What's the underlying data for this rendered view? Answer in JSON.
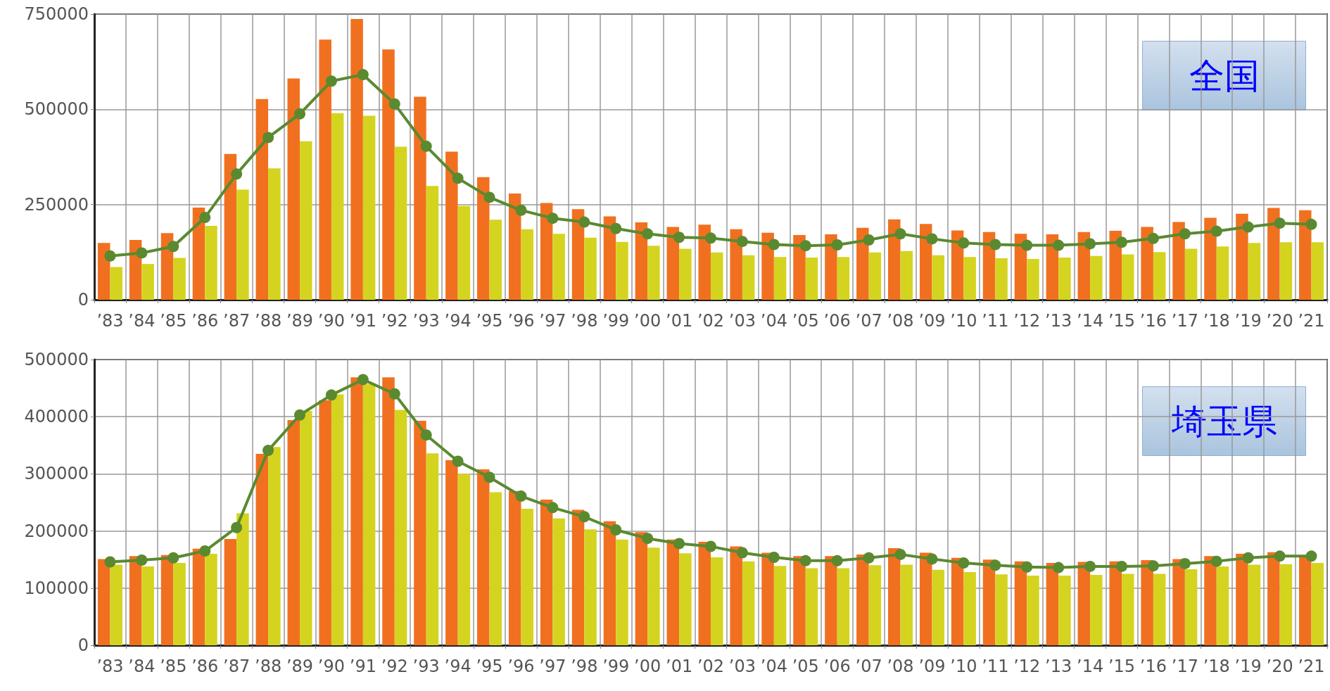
{
  "chart_data": [
    {
      "type": "bar",
      "categories": [
        "’83",
        "’84",
        "’85",
        "’86",
        "’87",
        "’88",
        "’89",
        "’90",
        "’91",
        "’92",
        "’93",
        "’94",
        "’95",
        "’96",
        "’97",
        "’98",
        "’99",
        "’00",
        "’01",
        "’02",
        "’03",
        "’04",
        "’05",
        "’06",
        "’07",
        "’08",
        "’09",
        "’10",
        "’11",
        "’12",
        "’13",
        "’14",
        "’15",
        "’16",
        "’17",
        "’18",
        "’19",
        "’20",
        "’21"
      ],
      "series": [
        {
          "color": "#f07020",
          "values": [
            149000,
            157000,
            175000,
            242000,
            383000,
            527000,
            581000,
            683000,
            737000,
            657000,
            533000,
            389000,
            322000,
            279000,
            254000,
            238000,
            219000,
            203000,
            191000,
            197000,
            185000,
            176000,
            170000,
            172000,
            189000,
            211000,
            199000,
            182000,
            178000,
            173000,
            172000,
            178000,
            181000,
            191000,
            204000,
            215000,
            226000,
            241000,
            235000
          ]
        },
        {
          "color": "#d4d420",
          "values": [
            86000,
            94000,
            110000,
            194000,
            289000,
            345000,
            416000,
            490000,
            483000,
            402000,
            299000,
            246000,
            210000,
            185000,
            173000,
            163000,
            152000,
            142000,
            134000,
            124000,
            117000,
            112000,
            111000,
            112000,
            124000,
            128000,
            117000,
            112000,
            109000,
            107000,
            111000,
            115000,
            119000,
            125000,
            134000,
            140000,
            149000,
            151000,
            151000
          ]
        },
        {
          "type": "line",
          "color": "#5a8a30",
          "values": [
            115000,
            123000,
            140000,
            216000,
            330000,
            426000,
            488000,
            574000,
            591000,
            514000,
            403000,
            319000,
            269000,
            235000,
            214000,
            204000,
            187000,
            173000,
            164000,
            162000,
            153000,
            145000,
            142000,
            144000,
            157000,
            173000,
            160000,
            149000,
            145000,
            143000,
            143000,
            147000,
            151000,
            161000,
            173000,
            180000,
            191000,
            201000,
            198000
          ]
        }
      ],
      "ylim": [
        0,
        750000
      ],
      "yticks": [
        0,
        250000,
        500000,
        750000
      ],
      "grid": true,
      "marker": "circle",
      "annotations": [
        "全国"
      ]
    },
    {
      "type": "bar",
      "categories": [
        "’83",
        "’84",
        "’85",
        "’86",
        "’87",
        "’88",
        "’89",
        "’90",
        "’91",
        "’92",
        "’93",
        "’94",
        "’95",
        "’96",
        "’97",
        "’98",
        "’99",
        "’00",
        "’01",
        "’02",
        "’03",
        "’04",
        "’05",
        "’06",
        "’07",
        "’08",
        "’09",
        "’10",
        "’11",
        "’12",
        "’13",
        "’14",
        "’15",
        "’16",
        "’17",
        "’18",
        "’19",
        "’20",
        "’21"
      ],
      "series": [
        {
          "color": "#f07020",
          "values": [
            151000,
            156000,
            158000,
            169000,
            186000,
            335000,
            394000,
            429000,
            469000,
            469000,
            393000,
            324000,
            308000,
            270000,
            255000,
            237000,
            217000,
            198000,
            185000,
            181000,
            173000,
            162000,
            156000,
            156000,
            159000,
            170000,
            162000,
            153000,
            150000,
            147000,
            144000,
            146000,
            147000,
            149000,
            151000,
            156000,
            160000,
            163000,
            155000
          ]
        },
        {
          "color": "#d4d420",
          "values": [
            141000,
            138000,
            144000,
            160000,
            231000,
            347000,
            410000,
            439000,
            457000,
            412000,
            336000,
            300000,
            268000,
            239000,
            222000,
            203000,
            185000,
            171000,
            161000,
            154000,
            147000,
            139000,
            135000,
            135000,
            140000,
            141000,
            132000,
            128000,
            124000,
            122000,
            122000,
            123000,
            125000,
            125000,
            133000,
            138000,
            141000,
            142000,
            144000
          ]
        },
        {
          "type": "line",
          "color": "#5a8a30",
          "values": [
            146000,
            149000,
            153000,
            165000,
            206000,
            341000,
            403000,
            438000,
            465000,
            440000,
            368000,
            322000,
            294000,
            261000,
            241000,
            225000,
            202000,
            187000,
            178000,
            173000,
            162000,
            154000,
            148000,
            148000,
            153000,
            159000,
            151000,
            144000,
            140000,
            137000,
            136000,
            138000,
            138000,
            139000,
            143000,
            147000,
            153000,
            156000,
            156000
          ]
        }
      ],
      "ylim": [
        0,
        500000
      ],
      "yticks": [
        0,
        100000,
        200000,
        300000,
        400000,
        500000
      ],
      "grid": true,
      "marker": "circle",
      "annotations": [
        "埼玉県"
      ]
    }
  ]
}
